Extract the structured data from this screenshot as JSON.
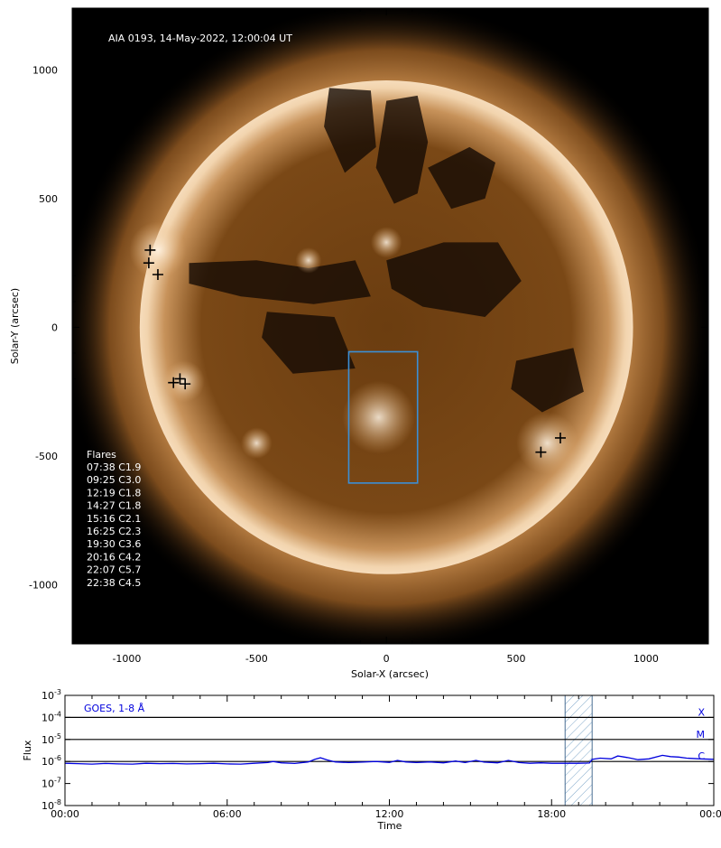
{
  "chart_data": [
    {
      "type": "image",
      "title": "AIA 0193, 14-May-2022, 12:00:04 UT",
      "xlabel": "Solar-X (arcsec)",
      "ylabel": "Solar-Y (arcsec)",
      "xlim": [
        -1210,
        1240
      ],
      "ylim": [
        -1230,
        1240
      ],
      "xticks": [
        -1000,
        -500,
        0,
        500,
        1000
      ],
      "yticks": [
        -1000,
        -500,
        0,
        500,
        1000
      ],
      "legend_title": "Flares",
      "flares": [
        {
          "time": "07:38",
          "class": "C1.9"
        },
        {
          "time": "09:25",
          "class": "C3.0"
        },
        {
          "time": "12:19",
          "class": "C1.8"
        },
        {
          "time": "14:27",
          "class": "C1.8"
        },
        {
          "time": "15:16",
          "class": "C2.1"
        },
        {
          "time": "16:25",
          "class": "C2.3"
        },
        {
          "time": "19:30",
          "class": "C3.6"
        },
        {
          "time": "20:16",
          "class": "C4.2"
        },
        {
          "time": "22:07",
          "class": "C5.7"
        },
        {
          "time": "22:38",
          "class": "C4.5"
        }
      ],
      "flare_markers": [
        {
          "x": -910,
          "y": 300
        },
        {
          "x": -915,
          "y": 250
        },
        {
          "x": -880,
          "y": 205
        },
        {
          "x": -820,
          "y": -215
        },
        {
          "x": -795,
          "y": -200
        },
        {
          "x": -775,
          "y": -220
        },
        {
          "x": 595,
          "y": -485
        },
        {
          "x": 670,
          "y": -430
        }
      ],
      "box": {
        "x0": -145,
        "x1": 120,
        "y0": -605,
        "y1": -95,
        "color": "#3b8fd6"
      }
    },
    {
      "type": "line",
      "series_label": "GOES, 1-8 Å",
      "xlabel": "Time",
      "ylabel": "Flux",
      "xticks": [
        "00:00",
        "06:00",
        "12:00",
        "18:00",
        "00:00"
      ],
      "ytick_exponents": [
        -3,
        -4,
        -5,
        -6,
        -7,
        -8
      ],
      "ytick_base": "10",
      "ylim_log10": [
        -8,
        -3
      ],
      "xlim_hours": [
        0,
        24
      ],
      "class_lines": [
        {
          "label": "X",
          "log10_flux": -4
        },
        {
          "label": "M",
          "log10_flux": -5
        },
        {
          "label": "C",
          "log10_flux": -6
        }
      ],
      "hatched_window_hours": [
        18.5,
        19.5
      ],
      "series": [
        {
          "color": "#0000dd",
          "points": [
            [
              0,
              -6.08
            ],
            [
              0.5,
              -6.1
            ],
            [
              1,
              -6.12
            ],
            [
              1.5,
              -6.09
            ],
            [
              2,
              -6.11
            ],
            [
              2.5,
              -6.12
            ],
            [
              3,
              -6.08
            ],
            [
              3.5,
              -6.1
            ],
            [
              4,
              -6.09
            ],
            [
              4.5,
              -6.11
            ],
            [
              5,
              -6.1
            ],
            [
              5.5,
              -6.08
            ],
            [
              6,
              -6.11
            ],
            [
              6.5,
              -6.12
            ],
            [
              7,
              -6.08
            ],
            [
              7.5,
              -6.05
            ],
            [
              7.7,
              -6.0
            ],
            [
              8,
              -6.06
            ],
            [
              8.5,
              -6.09
            ],
            [
              9,
              -6.02
            ],
            [
              9.25,
              -5.9
            ],
            [
              9.45,
              -5.83
            ],
            [
              9.7,
              -5.93
            ],
            [
              10,
              -6.02
            ],
            [
              10.5,
              -6.05
            ],
            [
              11,
              -6.03
            ],
            [
              11.5,
              -6.0
            ],
            [
              12,
              -6.04
            ],
            [
              12.3,
              -5.95
            ],
            [
              12.6,
              -6.02
            ],
            [
              13,
              -6.05
            ],
            [
              13.5,
              -6.02
            ],
            [
              14,
              -6.06
            ],
            [
              14.45,
              -5.98
            ],
            [
              14.8,
              -6.05
            ],
            [
              15.2,
              -5.95
            ],
            [
              15.5,
              -6.03
            ],
            [
              16,
              -6.06
            ],
            [
              16.4,
              -5.95
            ],
            [
              16.8,
              -6.05
            ],
            [
              17.2,
              -6.08
            ],
            [
              17.6,
              -6.06
            ],
            [
              18,
              -6.08
            ],
            [
              18.5,
              -6.08
            ],
            [
              19,
              -6.08
            ],
            [
              19.4,
              -6.07
            ],
            [
              19.5,
              -5.9
            ],
            [
              19.8,
              -5.85
            ],
            [
              20.2,
              -5.88
            ],
            [
              20.45,
              -5.75
            ],
            [
              20.8,
              -5.82
            ],
            [
              21.2,
              -5.92
            ],
            [
              21.6,
              -5.88
            ],
            [
              22.1,
              -5.72
            ],
            [
              22.4,
              -5.78
            ],
            [
              22.7,
              -5.8
            ],
            [
              23,
              -5.85
            ],
            [
              23.5,
              -5.88
            ],
            [
              24,
              -5.9
            ]
          ]
        }
      ]
    }
  ]
}
